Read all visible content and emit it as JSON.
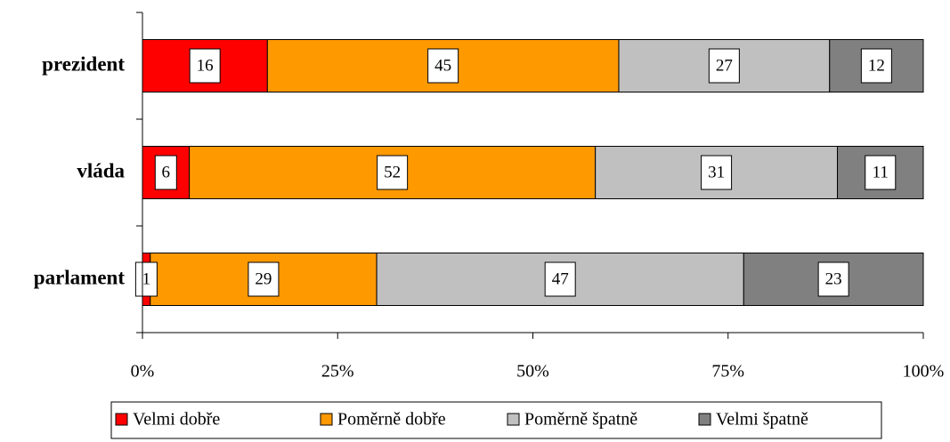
{
  "chart_data": {
    "type": "stacked-bar-horizontal",
    "categories": [
      "prezident",
      "vláda",
      "parlament"
    ],
    "series": [
      {
        "name": "Velmi dobře",
        "color": "#ff0000",
        "values": [
          16,
          6,
          1
        ]
      },
      {
        "name": "Poměrně dobře",
        "color": "#ff9900",
        "values": [
          45,
          52,
          29
        ]
      },
      {
        "name": "Poměrně špatně",
        "color": "#c0c0c0",
        "values": [
          27,
          31,
          47
        ]
      },
      {
        "name": "Velmi špatně",
        "color": "#808080",
        "values": [
          12,
          11,
          23
        ]
      }
    ],
    "xlim": [
      0,
      100
    ],
    "xticks": [
      {
        "value": 0,
        "label": "0%"
      },
      {
        "value": 25,
        "label": "25%"
      },
      {
        "value": 50,
        "label": "50%"
      },
      {
        "value": 75,
        "label": "75%"
      },
      {
        "value": 100,
        "label": "100%"
      }
    ],
    "legend": "bottom"
  }
}
